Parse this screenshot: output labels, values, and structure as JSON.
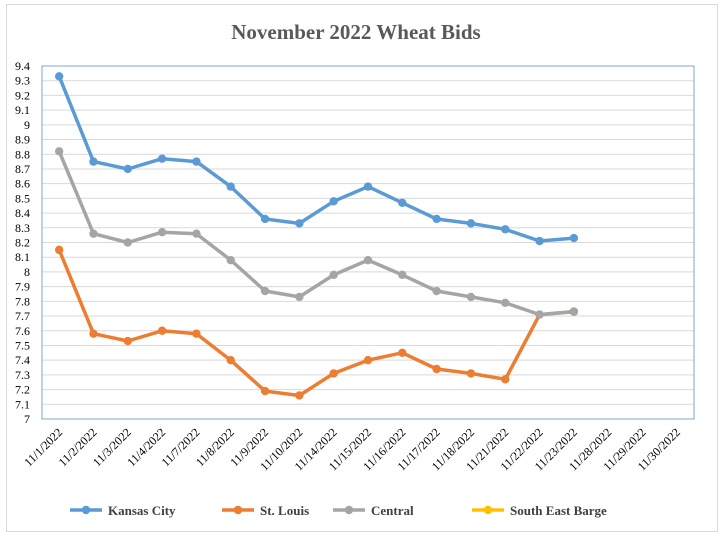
{
  "chart_data": {
    "type": "line",
    "title": "November 2022 Wheat Bids",
    "categories": [
      "11/1/2022",
      "11/2/2022",
      "11/3/2022",
      "11/4/2022",
      "11/7/2022",
      "11/8/2022",
      "11/9/2022",
      "11/10/2022",
      "11/14/2022",
      "11/15/2022",
      "11/16/2022",
      "11/17/2022",
      "11/18/2022",
      "11/21/2022",
      "11/22/2022",
      "11/23/2022",
      "11/28/2022",
      "11/29/2022",
      "11/30/2022"
    ],
    "ylim": [
      7,
      9.4
    ],
    "ytick_step": 0.1,
    "ytick_labels": [
      "7",
      "7.1",
      "7.2",
      "7.3",
      "7.4",
      "7.5",
      "7.6",
      "7.7",
      "7.8",
      "7.9",
      "8",
      "8.1",
      "8.2",
      "8.3",
      "8.4",
      "8.5",
      "8.6",
      "8.7",
      "8.8",
      "8.9",
      "9",
      "9.1",
      "9.2",
      "9.3",
      "9.4"
    ],
    "grid": "horizontal",
    "legend_position": "bottom",
    "series": [
      {
        "name": "Kansas City",
        "color": "#5b9bd5",
        "values": [
          9.33,
          8.75,
          8.7,
          8.77,
          8.75,
          8.58,
          8.36,
          8.33,
          8.48,
          8.58,
          8.47,
          8.36,
          8.33,
          8.29,
          8.21,
          8.23,
          null,
          null,
          null
        ]
      },
      {
        "name": "St. Louis",
        "color": "#ed7d31",
        "values": [
          8.15,
          7.58,
          7.53,
          7.6,
          7.58,
          7.4,
          7.19,
          7.16,
          7.31,
          7.4,
          7.45,
          7.34,
          7.31,
          7.27,
          7.71,
          7.73,
          null,
          null,
          null
        ]
      },
      {
        "name": "Central",
        "color": "#a5a5a5",
        "values": [
          8.82,
          8.26,
          8.2,
          8.27,
          8.26,
          8.08,
          7.87,
          7.83,
          7.98,
          8.08,
          7.98,
          7.87,
          7.83,
          7.79,
          7.71,
          7.73,
          null,
          null,
          null
        ]
      },
      {
        "name": "South East Barge",
        "color": "#ffc000",
        "values": [
          null,
          null,
          null,
          null,
          null,
          null,
          null,
          null,
          null,
          null,
          null,
          null,
          null,
          null,
          null,
          null,
          null,
          null,
          null
        ]
      }
    ]
  }
}
